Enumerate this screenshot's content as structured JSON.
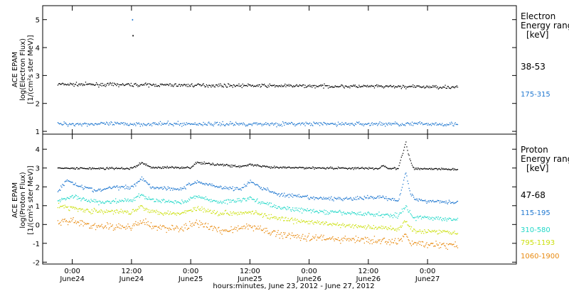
{
  "chart_data": [
    {
      "type": "scatter",
      "panel": "electron",
      "ylabel_lines": [
        "ACE EPAM",
        "log(Electron Flux)",
        "[1/(cm²s ster MeV)]"
      ],
      "legend_title": [
        "Electron",
        "Energy ranges",
        "[keV]"
      ],
      "ylim": [
        0.9,
        5.5
      ],
      "yticks": [
        1,
        2,
        3,
        4,
        5
      ],
      "xlim_hours": [
        -6,
        90
      ],
      "series": [
        {
          "name": "38-53",
          "color": "#000000",
          "baseline": 2.7,
          "end": 2.6,
          "noise": 0.04,
          "x_end_hours": 78,
          "outliers": [
            {
              "x": 12.1,
              "y": 5.02
            },
            {
              "x": 12.2,
              "y": 4.45
            }
          ]
        },
        {
          "name": "175-315",
          "color": "#1f77d0",
          "baseline": 1.28,
          "end": 1.28,
          "noise": 0.05,
          "x_end_hours": 78,
          "outliers": []
        }
      ]
    },
    {
      "type": "scatter",
      "panel": "proton",
      "ylabel_lines": [
        "ACE EPAM",
        "log(Proton Flux)",
        "[1/(cm²s ster MeV)]"
      ],
      "legend_title": [
        "Proton",
        "Energy ranges",
        "[keV]"
      ],
      "ylim": [
        -2.1,
        4.8
      ],
      "yticks": [
        -2,
        -1,
        0,
        1,
        2,
        3,
        4
      ],
      "xlim_hours": [
        -6,
        90
      ],
      "series": [
        {
          "name": "47-68",
          "color": "#000000",
          "x_end_hours": 78,
          "noise": 0.04,
          "profile": [
            [
              -3,
              3.0
            ],
            [
              12,
              3.0
            ],
            [
              14,
              3.3
            ],
            [
              16,
              3.05
            ],
            [
              24,
              3.05
            ],
            [
              25,
              3.3
            ],
            [
              30,
              3.2
            ],
            [
              34,
              3.1
            ],
            [
              36,
              3.2
            ],
            [
              40,
              3.05
            ],
            [
              62,
              3.0
            ],
            [
              63,
              3.15
            ],
            [
              64,
              3.0
            ],
            [
              66,
              3.0
            ],
            [
              67,
              3.9
            ],
            [
              67.5,
              4.4
            ],
            [
              68,
              3.8
            ],
            [
              69,
              3.0
            ],
            [
              78,
              2.95
            ]
          ]
        },
        {
          "name": "115-195",
          "color": "#1f77d0",
          "x_end_hours": 78,
          "noise": 0.07,
          "profile": [
            [
              -3,
              1.8
            ],
            [
              -1,
              2.4
            ],
            [
              1,
              2.1
            ],
            [
              5,
              1.8
            ],
            [
              8,
              2.0
            ],
            [
              12,
              2.0
            ],
            [
              14,
              2.5
            ],
            [
              16,
              2.0
            ],
            [
              22,
              1.9
            ],
            [
              25,
              2.3
            ],
            [
              30,
              2.0
            ],
            [
              34,
              1.9
            ],
            [
              36,
              2.3
            ],
            [
              38,
              2.0
            ],
            [
              42,
              1.6
            ],
            [
              50,
              1.4
            ],
            [
              58,
              1.4
            ],
            [
              62,
              1.5
            ],
            [
              66,
              1.3
            ],
            [
              67.5,
              2.8
            ],
            [
              68.5,
              1.6
            ],
            [
              70,
              1.3
            ],
            [
              78,
              1.2
            ]
          ]
        },
        {
          "name": "310-580",
          "color": "#22d8c8",
          "x_end_hours": 78,
          "noise": 0.08,
          "profile": [
            [
              -3,
              1.3
            ],
            [
              0,
              1.5
            ],
            [
              5,
              1.2
            ],
            [
              12,
              1.3
            ],
            [
              14,
              1.6
            ],
            [
              16,
              1.3
            ],
            [
              22,
              1.2
            ],
            [
              25,
              1.5
            ],
            [
              30,
              1.2
            ],
            [
              36,
              1.4
            ],
            [
              42,
              0.9
            ],
            [
              50,
              0.7
            ],
            [
              58,
              0.6
            ],
            [
              66,
              0.5
            ],
            [
              67.5,
              1.0
            ],
            [
              69,
              0.4
            ],
            [
              78,
              0.3
            ]
          ]
        },
        {
          "name": "795-1193",
          "color": "#cce010",
          "x_end_hours": 78,
          "noise": 0.09,
          "profile": [
            [
              -3,
              1.0
            ],
            [
              0,
              0.9
            ],
            [
              5,
              0.7
            ],
            [
              12,
              0.7
            ],
            [
              14,
              1.0
            ],
            [
              16,
              0.7
            ],
            [
              22,
              0.6
            ],
            [
              25,
              0.9
            ],
            [
              30,
              0.6
            ],
            [
              36,
              0.7
            ],
            [
              42,
              0.3
            ],
            [
              50,
              0.1
            ],
            [
              58,
              -0.1
            ],
            [
              66,
              -0.2
            ],
            [
              67.5,
              0.2
            ],
            [
              69,
              -0.3
            ],
            [
              78,
              -0.4
            ]
          ]
        },
        {
          "name": "1060-1900",
          "color": "#e88a10",
          "x_end_hours": 78,
          "noise": 0.13,
          "profile": [
            [
              -3,
              0.2
            ],
            [
              0,
              0.2
            ],
            [
              5,
              -0.1
            ],
            [
              12,
              -0.1
            ],
            [
              14,
              0.2
            ],
            [
              16,
              -0.1
            ],
            [
              22,
              -0.2
            ],
            [
              25,
              0.1
            ],
            [
              30,
              -0.3
            ],
            [
              36,
              -0.1
            ],
            [
              42,
              -0.5
            ],
            [
              50,
              -0.7
            ],
            [
              58,
              -0.8
            ],
            [
              66,
              -0.9
            ],
            [
              67.5,
              -0.6
            ],
            [
              69,
              -1.0
            ],
            [
              78,
              -1.1
            ]
          ]
        }
      ]
    }
  ],
  "x_axis": {
    "label": "hours:minutes, June 23, 2012 - June 27, 2012",
    "ticks": [
      {
        "hours": 0,
        "time": "0:00",
        "date": "June24"
      },
      {
        "hours": 12,
        "time": "12:00",
        "date": "June24"
      },
      {
        "hours": 24,
        "time": "0:00",
        "date": "June25"
      },
      {
        "hours": 36,
        "time": "12:00",
        "date": "June25"
      },
      {
        "hours": 48,
        "time": "0:00",
        "date": "June26"
      },
      {
        "hours": 60,
        "time": "12:00",
        "date": "June26"
      },
      {
        "hours": 72,
        "time": "0:00",
        "date": "June27"
      }
    ]
  }
}
